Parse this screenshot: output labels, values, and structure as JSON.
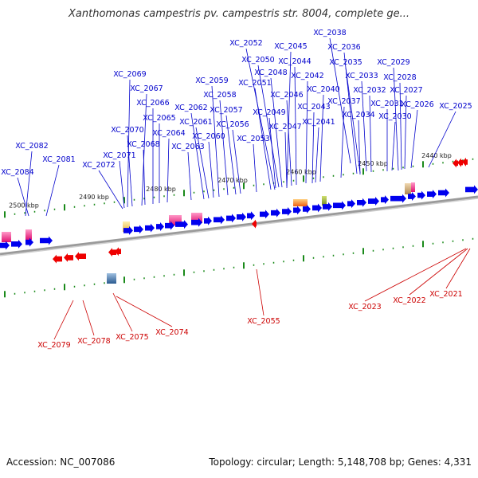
{
  "title": "Xanthomonas campestris pv. campestris str. 8004, complete ge...",
  "footer": {
    "accession": "Accession: NC_007086",
    "summary": "Topology: circular; Length: 5,148,708 bp; Genes: 4,331"
  },
  "colors": {
    "forward_gene": "#0000ee",
    "reverse_gene": "#ee0000",
    "forward_label": "#0000cc",
    "reverse_label": "#cc0000",
    "backbone": "#8a8a8a",
    "tick": "#1a8a1a",
    "feature_pink": "#e8177a",
    "feature_orange": "#f07a10",
    "feature_olive": "#8aa030",
    "feature_tan": "#c8a060",
    "feature_yellow": "#f0d070",
    "feature_steel": "#4070a0"
  },
  "scale_labels": [
    "2440 kbp",
    "2450 kbp",
    "2460 kbp",
    "2470 kbp",
    "2480 kbp",
    "2490 kbp",
    "2500 kbp"
  ],
  "forward_labels": [
    "XC_2038",
    "XC_2052",
    "XC_2045",
    "XC_2036",
    "XC_2050",
    "XC_2044",
    "XC_2035",
    "XC_2029",
    "XC_2048",
    "XC_2042",
    "XC_2033",
    "XC_2028",
    "XC_2069",
    "XC_2059",
    "XC_2051",
    "XC_2040",
    "XC_2067",
    "XC_2058",
    "XC_2046",
    "XC_2032",
    "XC_2027",
    "XC_2037",
    "XC_2066",
    "XC_2062",
    "XC_2043",
    "XC_2031",
    "XC_2026",
    "XC_2025",
    "XC_2057",
    "XC_2049",
    "XC_2065",
    "XC_2034",
    "XC_2030",
    "XC_2061",
    "XC_2056",
    "XC_2041",
    "XC_2047",
    "XC_2070",
    "XC_2064",
    "XC_2060",
    "XC_2063",
    "XC_2053",
    "XC_2068",
    "XC_2082",
    "XC_2071",
    "XC_2081",
    "XC_2072",
    "XC_2084"
  ],
  "reverse_labels": [
    "XC_2023",
    "XC_2022",
    "XC_2021",
    "XC_2055",
    "XC_2074",
    "XC_2075",
    "XC_2078",
    "XC_2079"
  ]
}
